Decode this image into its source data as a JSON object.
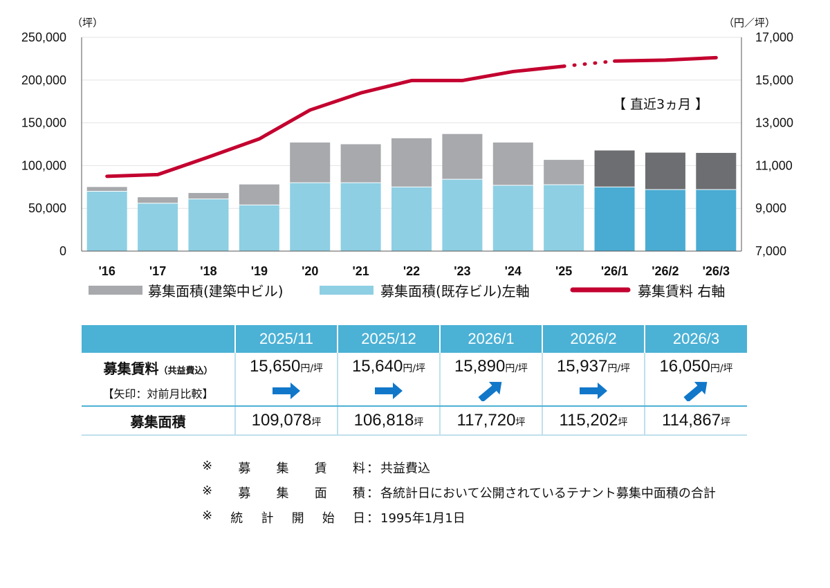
{
  "chart_data": {
    "type": "bar+line",
    "categories": [
      "'16",
      "'17",
      "'18",
      "'19",
      "'20",
      "'21",
      "'22",
      "'23",
      "'24",
      "'25",
      "'26/1",
      "'26/2",
      "'26/3"
    ],
    "series": [
      {
        "name": "募集面積(既存ビル)左軸",
        "axis": "left",
        "kind": "stacked-bar",
        "values": [
          70000,
          56000,
          61000,
          54000,
          80000,
          80000,
          75000,
          84000,
          77000,
          77720,
          75000,
          72000,
          72000
        ]
      },
      {
        "name": "募集面積(建築中ビル)",
        "axis": "left",
        "kind": "stacked-bar",
        "values": [
          5000,
          7000,
          7000,
          24000,
          47000,
          45000,
          57000,
          53000,
          50000,
          29000,
          42720,
          43202,
          42867
        ]
      },
      {
        "name": "募集賃料 右軸",
        "axis": "right",
        "kind": "line",
        "values": [
          10500,
          10580,
          11400,
          12250,
          13600,
          14400,
          14980,
          14980,
          15400,
          15650,
          15890,
          15937,
          16050
        ]
      }
    ],
    "left_axis": {
      "unit": "（坪）",
      "ylim": [
        0,
        250000
      ],
      "ticks": [
        "0",
        "50,000",
        "100,000",
        "150,000",
        "200,000",
        "250,000"
      ]
    },
    "right_axis": {
      "unit": "（円／坪）",
      "ylim": [
        7000,
        17000
      ],
      "ticks": [
        "7,000",
        "9,000",
        "11,000",
        "13,000",
        "15,000",
        "17,000"
      ]
    },
    "annotation": "【 直近3ヵ月 】",
    "legend_position": "bottom",
    "colors": {
      "existing_past": "#8ecfe3",
      "existing_recent": "#4aacd2",
      "construction_past": "#a7a9ac",
      "construction_recent": "#6d6e71",
      "rent_line": "#c3002f"
    }
  },
  "table": {
    "headers": [
      "2025/11",
      "2025/12",
      "2026/1",
      "2026/2",
      "2026/3"
    ],
    "rent_row": {
      "title": "募集賃料",
      "subtitle": "（共益費込）",
      "note": "【矢印：対前月比較】",
      "values": [
        "15,650",
        "15,640",
        "15,890",
        "15,937",
        "16,050"
      ],
      "unit": "円/坪",
      "arrows": [
        "flat",
        "flat",
        "up",
        "flat",
        "up"
      ]
    },
    "area_row": {
      "title": "募集面積",
      "values": [
        "109,078",
        "106,818",
        "117,720",
        "115,202",
        "114,867"
      ],
      "unit": "坪"
    },
    "colors": {
      "header_bg": "#4bb1d5",
      "arrow": "#1177c9"
    }
  },
  "notes": [
    {
      "label": [
        "※",
        "募",
        "集",
        "賃",
        "料"
      ],
      "colon": "：",
      "text": "共益費込"
    },
    {
      "label": [
        "※",
        "募",
        "集",
        "面",
        "積"
      ],
      "colon": "：",
      "text": "各統計日において公開されているテナント募集中面積の合計"
    },
    {
      "label": [
        "※",
        "統",
        "計",
        "開",
        "始",
        "日"
      ],
      "colon": "：",
      "text": "1995年1月1日"
    }
  ]
}
